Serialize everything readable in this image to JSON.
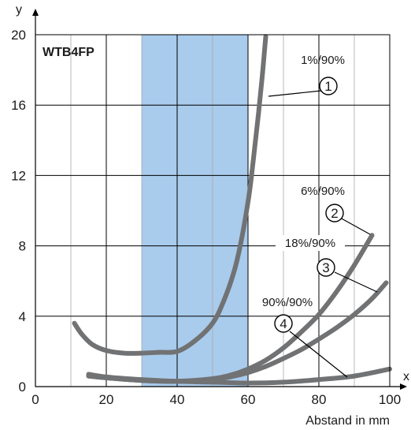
{
  "chart_data": {
    "type": "line",
    "title": "WTB4FP",
    "xlabel": "Abstand in mm",
    "ylabel": "",
    "x_axis_name": "x",
    "y_axis_name": "y",
    "xlim": [
      0,
      100
    ],
    "ylim": [
      0,
      20
    ],
    "x_ticks": [
      "0",
      "20",
      "40",
      "60",
      "80",
      "100"
    ],
    "y_ticks": [
      "0",
      "4",
      "8",
      "12",
      "16",
      "20"
    ],
    "grid": true,
    "highlight_band": {
      "x_from": 30,
      "x_to": 60,
      "color": "#a9cbec"
    },
    "line_color": "#717274",
    "series": [
      {
        "name": "1%/90%",
        "marker": "1",
        "x": [
          11,
          13,
          16,
          20,
          25,
          30,
          35,
          40,
          45,
          50,
          53,
          56,
          58,
          60,
          61,
          62,
          63,
          64,
          65
        ],
        "y": [
          3.6,
          3.0,
          2.4,
          2.05,
          1.9,
          1.9,
          1.95,
          2.0,
          2.6,
          3.6,
          4.8,
          6.5,
          8.2,
          10.5,
          12.0,
          13.8,
          15.6,
          17.6,
          19.9
        ]
      },
      {
        "name": "6%/90%",
        "marker": "2",
        "x": [
          15,
          20,
          30,
          40,
          50,
          55,
          60,
          65,
          70,
          75,
          80,
          85,
          90,
          95
        ],
        "y": [
          0.6,
          0.5,
          0.35,
          0.3,
          0.45,
          0.65,
          1.0,
          1.5,
          2.2,
          3.1,
          4.1,
          5.4,
          6.9,
          8.6
        ]
      },
      {
        "name": "18%/90%",
        "marker": "3",
        "x": [
          15,
          20,
          30,
          40,
          50,
          55,
          60,
          65,
          70,
          75,
          80,
          85,
          90,
          95,
          99
        ],
        "y": [
          0.6,
          0.5,
          0.35,
          0.3,
          0.4,
          0.55,
          0.8,
          1.15,
          1.6,
          2.1,
          2.7,
          3.35,
          4.1,
          5.0,
          5.9
        ]
      },
      {
        "name": "90%/90%",
        "marker": "4",
        "x": [
          15,
          20,
          30,
          40,
          50,
          60,
          70,
          80,
          90,
          100
        ],
        "y": [
          0.7,
          0.55,
          0.4,
          0.3,
          0.25,
          0.2,
          0.25,
          0.4,
          0.6,
          1.0
        ]
      }
    ]
  }
}
